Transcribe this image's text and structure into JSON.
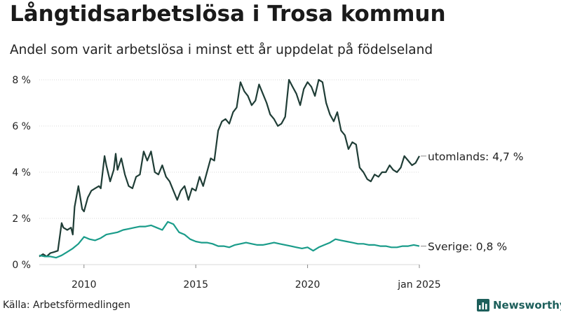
{
  "header": {
    "title": "Långtidsarbetslösa i Trosa kommun",
    "subtitle": "Andel som varit arbetslösa i minst ett år uppdelat på födelseland"
  },
  "footer": {
    "source": "Källa: Arbetsförmedlingen",
    "brand": "Newsworthy"
  },
  "colors": {
    "utomlands": "#1f3d36",
    "sverige": "#1a9c8a",
    "grid": "#d9d9d9",
    "brand": "#1d5f5b"
  },
  "chart_data": {
    "type": "line",
    "title": "Långtidsarbetslösa i Trosa kommun",
    "subtitle": "Andel som varit arbetslösa i minst ett år uppdelat på födelseland",
    "ylim": [
      0,
      8.3
    ],
    "y_ticks": [
      0,
      2,
      4,
      6,
      8
    ],
    "y_tick_labels": [
      "0 %",
      "2 %",
      "4 %",
      "6 %",
      "8 %"
    ],
    "x_ticks": [
      2010,
      2015,
      2020,
      2025
    ],
    "x_tick_labels": [
      "2010",
      "2015",
      "2020",
      "jan 2025"
    ],
    "xlim": [
      2008.0,
      2025.0
    ],
    "grid": "horizontal",
    "series": [
      {
        "name": "utomlands",
        "end_label": "utomlands: 4,7 %",
        "x": [
          2008.0,
          2008.17,
          2008.33,
          2008.5,
          2008.67,
          2008.83,
          2009.0,
          2009.08,
          2009.25,
          2009.42,
          2009.5,
          2009.58,
          2009.75,
          2009.92,
          2010.0,
          2010.17,
          2010.33,
          2010.5,
          2010.67,
          2010.75,
          2010.92,
          2011.0,
          2011.17,
          2011.33,
          2011.42,
          2011.5,
          2011.67,
          2011.83,
          2012.0,
          2012.17,
          2012.33,
          2012.5,
          2012.67,
          2012.83,
          2013.0,
          2013.17,
          2013.33,
          2013.5,
          2013.67,
          2013.83,
          2014.0,
          2014.17,
          2014.33,
          2014.5,
          2014.67,
          2014.83,
          2015.0,
          2015.17,
          2015.33,
          2015.5,
          2015.67,
          2015.83,
          2016.0,
          2016.17,
          2016.33,
          2016.5,
          2016.67,
          2016.83,
          2017.0,
          2017.17,
          2017.33,
          2017.5,
          2017.67,
          2017.83,
          2018.0,
          2018.17,
          2018.33,
          2018.5,
          2018.67,
          2018.83,
          2019.0,
          2019.17,
          2019.33,
          2019.5,
          2019.67,
          2019.83,
          2020.0,
          2020.17,
          2020.33,
          2020.5,
          2020.67,
          2020.83,
          2021.0,
          2021.17,
          2021.33,
          2021.5,
          2021.67,
          2021.83,
          2022.0,
          2022.17,
          2022.33,
          2022.5,
          2022.67,
          2022.83,
          2023.0,
          2023.17,
          2023.33,
          2023.5,
          2023.67,
          2023.83,
          2024.0,
          2024.17,
          2024.33,
          2024.5,
          2024.67,
          2024.83,
          2025.0
        ],
        "y": [
          0.35,
          0.45,
          0.35,
          0.5,
          0.55,
          0.6,
          1.8,
          1.6,
          1.5,
          1.6,
          1.3,
          2.5,
          3.4,
          2.4,
          2.3,
          2.9,
          3.2,
          3.3,
          3.4,
          3.3,
          4.7,
          4.3,
          3.6,
          4.1,
          4.8,
          4.1,
          4.6,
          3.9,
          3.4,
          3.3,
          3.8,
          3.9,
          4.9,
          4.5,
          4.9,
          4.0,
          3.9,
          4.3,
          3.8,
          3.6,
          3.2,
          2.8,
          3.2,
          3.4,
          2.8,
          3.3,
          3.2,
          3.8,
          3.4,
          4.0,
          4.6,
          4.5,
          5.8,
          6.2,
          6.3,
          6.1,
          6.6,
          6.8,
          7.9,
          7.5,
          7.3,
          6.9,
          7.1,
          7.8,
          7.4,
          7.0,
          6.5,
          6.3,
          6.0,
          6.1,
          6.4,
          8.0,
          7.7,
          7.4,
          6.9,
          7.6,
          7.9,
          7.7,
          7.3,
          8.0,
          7.9,
          7.0,
          6.5,
          6.2,
          6.6,
          5.8,
          5.6,
          5.0,
          5.3,
          5.2,
          4.2,
          4.0,
          3.7,
          3.6,
          3.9,
          3.8,
          4.0,
          4.0,
          4.3,
          4.1,
          4.0,
          4.2,
          4.7,
          4.5,
          4.3,
          4.4,
          4.7
        ]
      },
      {
        "name": "Sverige",
        "end_label": "Sverige: 0,8 %",
        "x": [
          2008.0,
          2008.25,
          2008.5,
          2008.75,
          2009.0,
          2009.25,
          2009.5,
          2009.75,
          2010.0,
          2010.25,
          2010.5,
          2010.75,
          2011.0,
          2011.25,
          2011.5,
          2011.75,
          2012.0,
          2012.25,
          2012.5,
          2012.75,
          2013.0,
          2013.25,
          2013.5,
          2013.75,
          2014.0,
          2014.25,
          2014.5,
          2014.75,
          2015.0,
          2015.25,
          2015.5,
          2015.75,
          2016.0,
          2016.25,
          2016.5,
          2016.75,
          2017.0,
          2017.25,
          2017.5,
          2017.75,
          2018.0,
          2018.25,
          2018.5,
          2018.75,
          2019.0,
          2019.25,
          2019.5,
          2019.75,
          2020.0,
          2020.25,
          2020.5,
          2020.75,
          2021.0,
          2021.25,
          2021.5,
          2021.75,
          2022.0,
          2022.25,
          2022.5,
          2022.75,
          2023.0,
          2023.25,
          2023.5,
          2023.75,
          2024.0,
          2024.25,
          2024.5,
          2024.75,
          2025.0
        ],
        "y": [
          0.4,
          0.35,
          0.35,
          0.3,
          0.4,
          0.55,
          0.7,
          0.9,
          1.2,
          1.1,
          1.05,
          1.15,
          1.3,
          1.35,
          1.4,
          1.5,
          1.55,
          1.6,
          1.65,
          1.65,
          1.7,
          1.6,
          1.5,
          1.85,
          1.75,
          1.4,
          1.3,
          1.1,
          1.0,
          0.95,
          0.95,
          0.9,
          0.8,
          0.8,
          0.75,
          0.85,
          0.9,
          0.95,
          0.9,
          0.85,
          0.85,
          0.9,
          0.95,
          0.9,
          0.85,
          0.8,
          0.75,
          0.7,
          0.75,
          0.6,
          0.75,
          0.85,
          0.95,
          1.1,
          1.05,
          1.0,
          0.95,
          0.9,
          0.9,
          0.85,
          0.85,
          0.8,
          0.8,
          0.75,
          0.75,
          0.8,
          0.8,
          0.85,
          0.8
        ]
      }
    ]
  }
}
